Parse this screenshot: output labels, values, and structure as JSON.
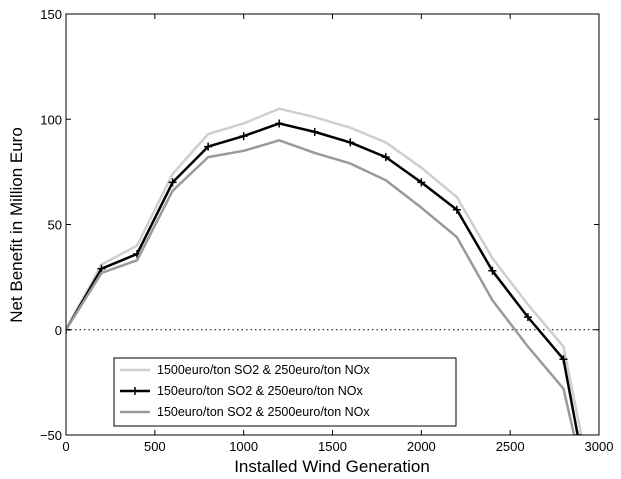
{
  "chart_data": {
    "type": "line",
    "title": "",
    "xlabel": "Installed Wind Generation",
    "ylabel": "Net Benefit in Million Euro",
    "xlim": [
      0,
      3000
    ],
    "ylim": [
      -50,
      150
    ],
    "xticks": [
      0,
      500,
      1000,
      1500,
      2000,
      2500,
      3000
    ],
    "yticks": [
      -50,
      0,
      50,
      100,
      150
    ],
    "xtick_labels": [
      "0",
      "500",
      "1000",
      "1500",
      "2000",
      "2500",
      "3000"
    ],
    "ytick_labels": [
      "−50",
      "0",
      "50",
      "100",
      "150"
    ],
    "grid": false,
    "legend_position": "bottom-center",
    "reference_line": {
      "y": 0,
      "style": "dotted"
    },
    "series": [
      {
        "name": "1500euro/ton SO2 & 250euro/ton NOx",
        "color": "#cfcfcf",
        "marker": "none",
        "x": [
          0,
          200,
          400,
          600,
          800,
          1000,
          1200,
          1400,
          1600,
          1800,
          2000,
          2200,
          2400,
          2600,
          2800,
          2900
        ],
        "y": [
          0,
          31,
          40,
          74,
          93,
          98,
          105,
          101,
          96,
          89,
          77,
          63,
          34,
          12,
          -8,
          -50
        ]
      },
      {
        "name": "150euro/ton SO2 & 250euro/ton NOx",
        "color": "#000000",
        "marker": "plus",
        "x": [
          0,
          200,
          400,
          600,
          800,
          1000,
          1200,
          1400,
          1600,
          1800,
          2000,
          2200,
          2400,
          2600,
          2800,
          2880
        ],
        "y": [
          0,
          29,
          36,
          70,
          87,
          92,
          98,
          94,
          89,
          82,
          70,
          57,
          28,
          6,
          -14,
          -50
        ]
      },
      {
        "name": "150euro/ton SO2 & 2500euro/ton NOx",
        "color": "#9a9a9a",
        "marker": "none",
        "x": [
          0,
          200,
          400,
          600,
          800,
          1000,
          1200,
          1400,
          1600,
          1800,
          2000,
          2200,
          2400,
          2600,
          2800,
          2860
        ],
        "y": [
          0,
          27,
          33,
          66,
          82,
          85,
          90,
          84,
          79,
          71,
          58,
          44,
          14,
          -8,
          -28,
          -50
        ]
      }
    ]
  }
}
